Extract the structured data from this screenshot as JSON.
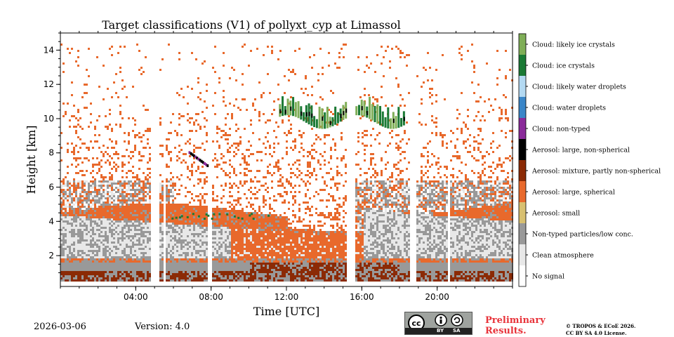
{
  "chart_data": {
    "type": "heatmap",
    "title": "Target classifications (V1) of pollyxt_cyp at Limassol",
    "xlabel": "Time [UTC]",
    "ylabel": "Height [km]",
    "xlim_hours": [
      0,
      24
    ],
    "ylim_km": [
      0.2,
      15
    ],
    "x_ticks": [
      {
        "value": 4,
        "label": "04:00"
      },
      {
        "value": 8,
        "label": "08:00"
      },
      {
        "value": 12,
        "label": "12:00"
      },
      {
        "value": 16,
        "label": "16:00"
      },
      {
        "value": 20,
        "label": "20:00"
      }
    ],
    "y_ticks": [
      {
        "value": 2,
        "label": "2"
      },
      {
        "value": 4,
        "label": "4"
      },
      {
        "value": 6,
        "label": "6"
      },
      {
        "value": 8,
        "label": "8"
      },
      {
        "value": 10,
        "label": "10"
      },
      {
        "value": 12,
        "label": "12"
      },
      {
        "value": 14,
        "label": "14"
      }
    ],
    "legend": [
      {
        "label": "Cloud: likely ice crystals",
        "color": "#7fae57"
      },
      {
        "label": "Cloud: ice crystals",
        "color": "#1b7a35"
      },
      {
        "label": "Cloud: likely water droplets",
        "color": "#b3d9f2"
      },
      {
        "label": "Cloud: water droplets",
        "color": "#3a86c8"
      },
      {
        "label": "Cloud: non-typed",
        "color": "#8a2a9a"
      },
      {
        "label": "Aerosol: large, non-spherical",
        "color": "#000000"
      },
      {
        "label": "Aerosol: mixture, partly non-spherical",
        "color": "#8b2a05"
      },
      {
        "label": "Aerosol: large, spherical",
        "color": "#e8692c"
      },
      {
        "label": "Aerosol: small",
        "color": "#d8c071"
      },
      {
        "label": "Non-typed particles/low conc.",
        "color": "#999999"
      },
      {
        "label": "Clean atmosphere",
        "color": "#e8e8e8"
      },
      {
        "label": "No signal",
        "color": "#ffffff"
      }
    ],
    "layers": [
      {
        "class": "Aerosol: mixture, partly non-spherical",
        "from_km": 0.5,
        "to_km": 1.2,
        "description_time": [
          0,
          24
        ]
      },
      {
        "class": "Non-typed particles/low conc.",
        "from_km": 0.5,
        "to_km": 1.6,
        "description_time": [
          0,
          24
        ]
      },
      {
        "class": "Aerosol: large, spherical",
        "from_km": 1.4,
        "to_km": 4.8,
        "description_time": [
          0,
          24
        ]
      },
      {
        "class": "Clean atmosphere",
        "from_km": 1.6,
        "to_km": 4.0,
        "description_time": [
          0,
          24
        ]
      },
      {
        "class": "Aerosol: large, spherical (sparse)",
        "from_km": 4.8,
        "to_km": 12,
        "description_time": [
          0,
          24
        ]
      },
      {
        "class": "Cloud: ice crystals",
        "from_km": 9.6,
        "to_km": 11.0,
        "description_time": [
          12,
          18
        ]
      }
    ],
    "signal_gaps_hours": [
      [
        4.7,
        5.2
      ],
      [
        5.4,
        5.5
      ],
      [
        7.8,
        8.0
      ],
      [
        15.2,
        15.6
      ],
      [
        18.5,
        18.8
      ],
      [
        20.5,
        20.6
      ]
    ]
  },
  "footer": {
    "date": "2026-03-06",
    "version": "Version: 4.0",
    "preliminary_line1": "Preliminary",
    "preliminary_line2": "Results.",
    "copyright_line1": "© TROPOS & ECoE 2026.",
    "copyright_line2": "CC BY SA 4.0 License.",
    "license_by": "BY",
    "license_sa": "SA"
  }
}
